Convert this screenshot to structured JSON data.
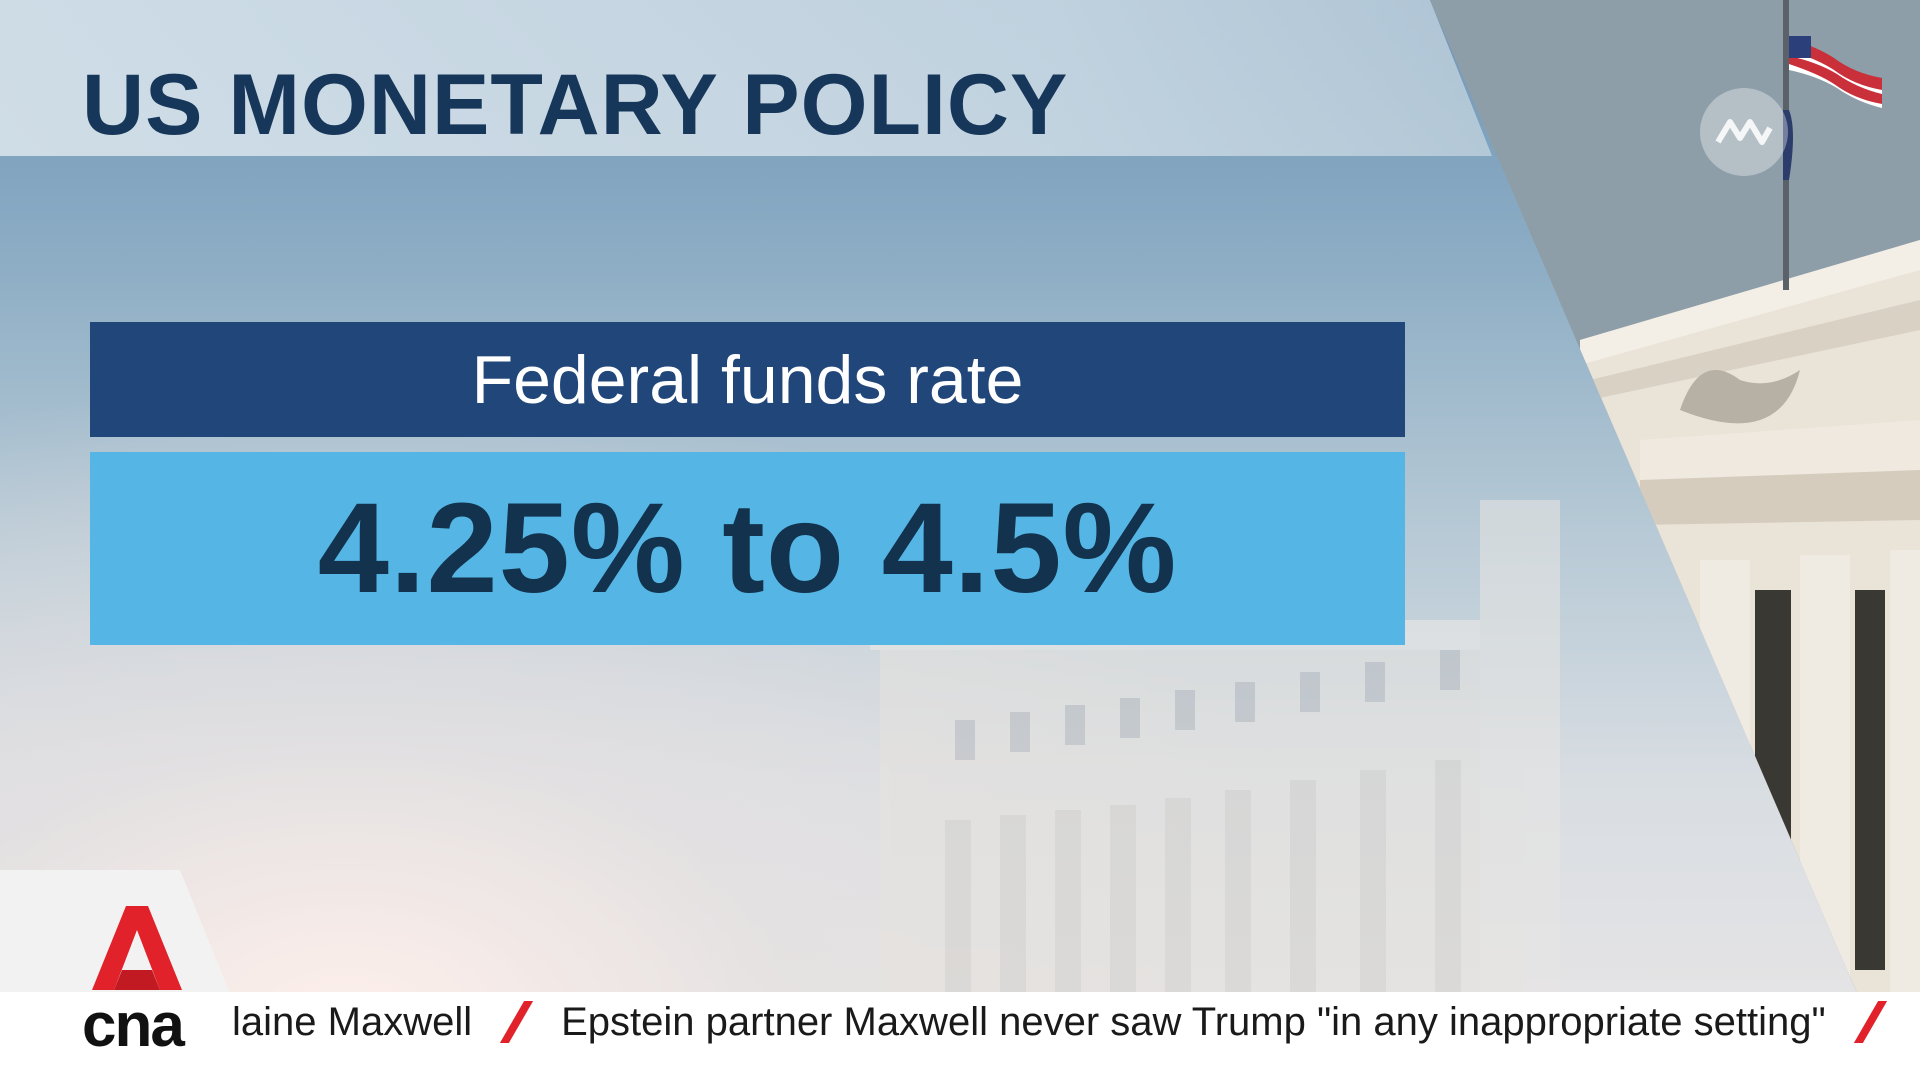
{
  "headline": "US MONETARY POLICY",
  "info_card": {
    "label": "Federal funds rate",
    "value": "4.25% to 4.5%"
  },
  "ticker": {
    "items": [
      "laine Maxwell",
      "Epstein partner Maxwell never saw Trump \"in any inappropriate setting\""
    ],
    "separator_color": "#e2222a"
  },
  "brand": {
    "name": "cna",
    "accent_color": "#e2222a"
  },
  "colors": {
    "title": "#17375a",
    "label_bg": "#21477a",
    "value_bg": "#55b6e5",
    "value_text": "#12324d"
  },
  "icons": [
    "channel-watermark-icon",
    "flag-icon",
    "cna-a-logo-icon"
  ]
}
